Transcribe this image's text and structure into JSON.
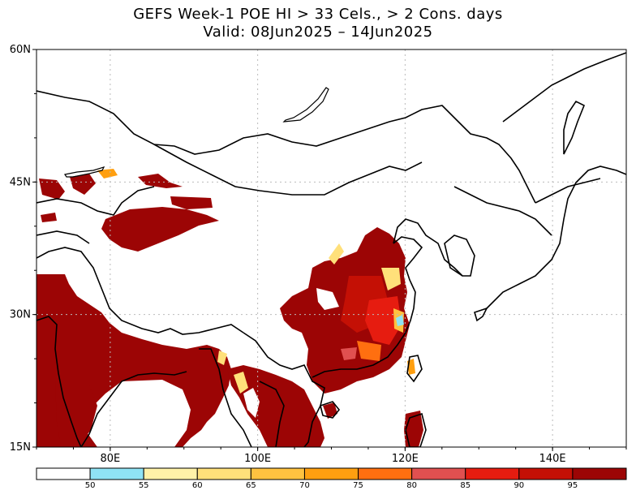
{
  "title": {
    "line1": "GEFS Week-1 POE HI > 33 Cels., > 2 Cons. days",
    "line2": "Valid: 08Jun2025 – 14Jun2025"
  },
  "map": {
    "lon_range": [
      70,
      150
    ],
    "lat_range": [
      15,
      60
    ],
    "lat_ticks": [
      {
        "value": 15,
        "label": "15N"
      },
      {
        "value": 30,
        "label": "30N"
      },
      {
        "value": 45,
        "label": "45N"
      },
      {
        "value": 60,
        "label": "60N"
      }
    ],
    "lon_ticks": [
      {
        "value": 80,
        "label": "80E"
      },
      {
        "value": 100,
        "label": "100E"
      },
      {
        "value": 120,
        "label": "120E"
      },
      {
        "value": 140,
        "label": "140E"
      }
    ],
    "grid": true
  },
  "colorbar": {
    "colors": [
      "#ffffff",
      "#8fe3f5",
      "#fff2a8",
      "#ffe07a",
      "#ffc240",
      "#ff9f10",
      "#ff6f10",
      "#e05050",
      "#e61c10",
      "#c41005",
      "#9c0505"
    ],
    "labels": [
      "50",
      "55",
      "60",
      "65",
      "70",
      "75",
      "80",
      "85",
      "90",
      "95"
    ]
  },
  "colors": {
    "dark_red": "#9c0505",
    "red": "#c41005",
    "orange": "#ff9f10",
    "yellow": "#ffe07a",
    "cyan": "#8fe3f5"
  }
}
